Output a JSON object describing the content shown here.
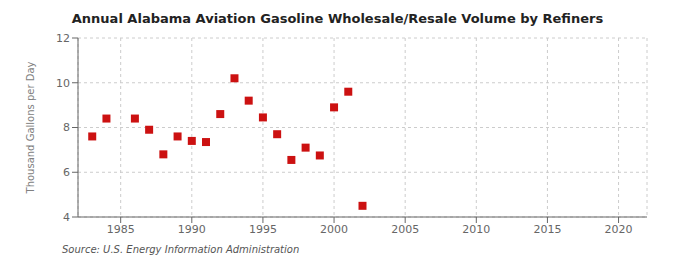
{
  "chart_data": {
    "type": "scatter",
    "title": "Annual Alabama Aviation Gasoline Wholesale/Resale Volume by Refiners",
    "ylabel": "Thousand Gallons per Day",
    "annotation": "Source: U.S. Energy Information Administration",
    "x": [
      1983,
      1984,
      1986,
      1987,
      1988,
      1989,
      1990,
      1991,
      1992,
      1993,
      1994,
      1995,
      1996,
      1997,
      1998,
      1999,
      2000,
      2001,
      2002
    ],
    "values": [
      7.6,
      8.4,
      8.4,
      7.9,
      6.8,
      7.6,
      7.4,
      7.35,
      8.6,
      10.2,
      9.2,
      8.45,
      7.7,
      6.55,
      7.1,
      6.75,
      8.9,
      9.6,
      4.5
    ],
    "color": "#cc1111",
    "marker": "square",
    "xlim": [
      1982,
      2022
    ],
    "ylim": [
      4,
      12
    ],
    "xticks": [
      1985,
      1990,
      1995,
      2000,
      2005,
      2010,
      2015,
      2020
    ],
    "yticks": [
      4,
      6,
      8,
      10,
      12
    ],
    "grid": true
  }
}
